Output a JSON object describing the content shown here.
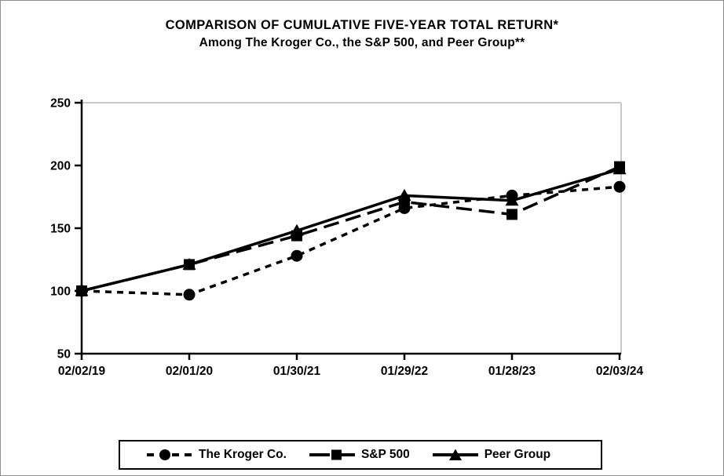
{
  "page": {
    "border_color": "#8f8f8f",
    "background": "#ffffff"
  },
  "chart_data": {
    "type": "line",
    "title": "COMPARISON OF CUMULATIVE FIVE-YEAR TOTAL RETURN*",
    "subtitle": "Among The Kroger Co., the S&P 500, and Peer Group**",
    "categories": [
      "02/02/19",
      "02/01/20",
      "01/30/21",
      "01/29/22",
      "01/28/23",
      "02/03/24"
    ],
    "series": [
      {
        "name": "The Kroger Co.",
        "marker": "circle",
        "line_style": "dashed",
        "values": [
          100,
          97,
          128,
          166,
          176,
          183
        ]
      },
      {
        "name": "S&P 500",
        "marker": "square",
        "line_style": "long-dash",
        "values": [
          100,
          121,
          144,
          171,
          161,
          199
        ]
      },
      {
        "name": "Peer Group",
        "marker": "triangle",
        "line_style": "solid",
        "values": [
          100,
          121,
          148,
          176,
          172,
          197
        ]
      }
    ],
    "ylim": [
      50,
      250
    ],
    "yticks": [
      50,
      100,
      150,
      200,
      250
    ],
    "xlabel": "",
    "ylabel": "",
    "grid": false,
    "legend_position": "bottom",
    "line_color": "#000000",
    "frame_color": "#c9c9c9"
  }
}
